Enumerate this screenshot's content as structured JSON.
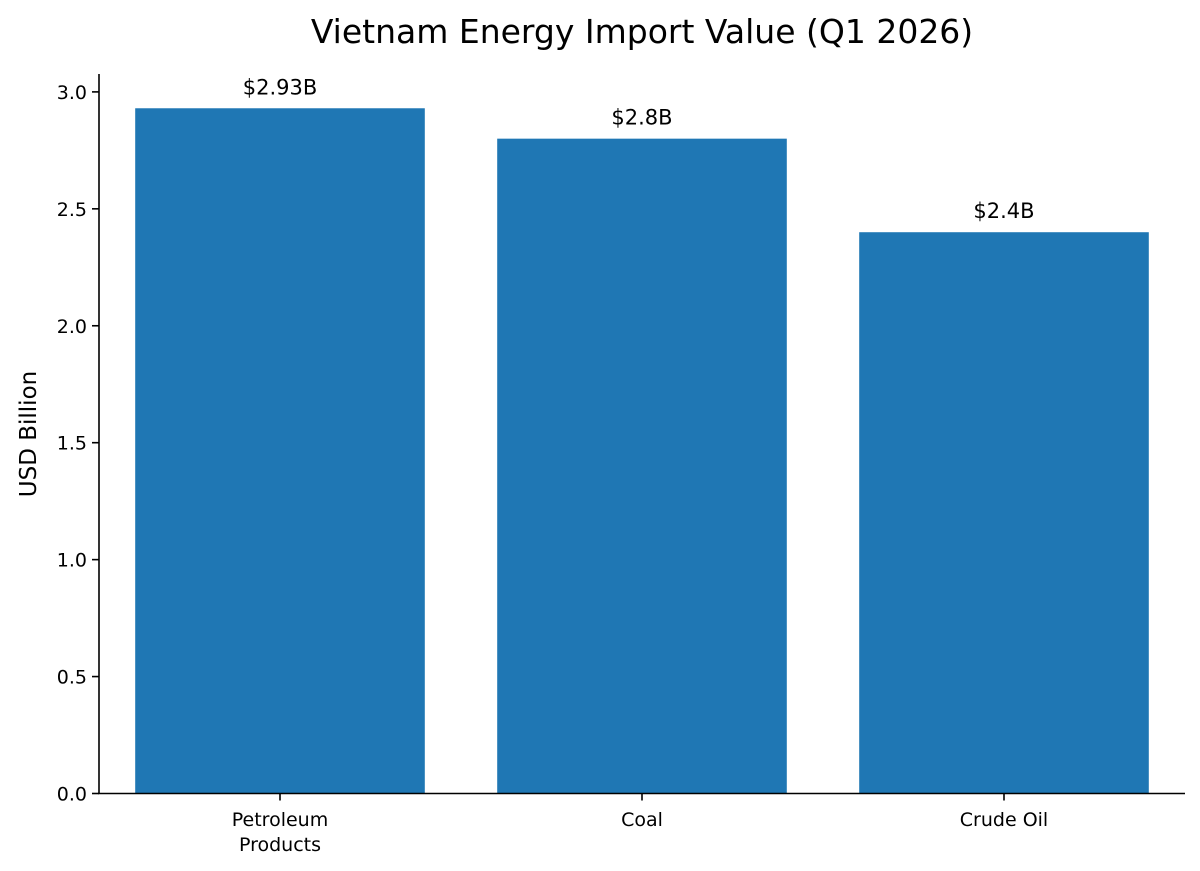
{
  "chart_data": {
    "type": "bar",
    "title": "Vietnam Energy Import Value (Q1 2026)",
    "xlabel": "",
    "ylabel": "USD Billion",
    "categories": [
      [
        "Petroleum",
        "Products"
      ],
      [
        "Coal"
      ],
      [
        "Crude Oil"
      ]
    ],
    "values": [
      2.93,
      2.8,
      2.4
    ],
    "data_labels": [
      "$2.93B",
      "$2.8B",
      "$2.4B"
    ],
    "yticks": [
      0.0,
      0.5,
      1.0,
      1.5,
      2.0,
      2.5,
      3.0
    ],
    "ytick_labels": [
      "0.0",
      "0.5",
      "1.0",
      "1.5",
      "2.0",
      "2.5",
      "3.0"
    ],
    "ylim": [
      0,
      3.0765
    ],
    "grid": false,
    "bar_color": "#1f77b4"
  }
}
